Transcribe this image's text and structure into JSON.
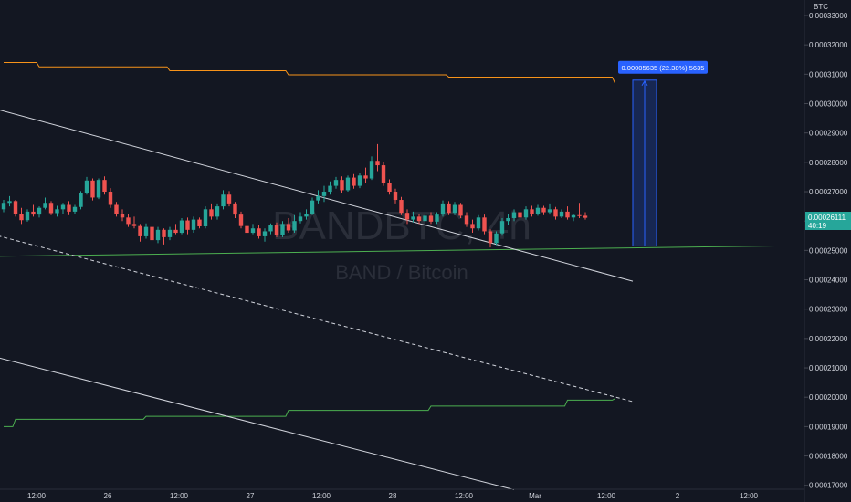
{
  "watermark": {
    "symbol": "BANDBTC, 4h",
    "pair": "BAND / Bitcoin"
  },
  "axis_currency": "BTC",
  "price_tag": {
    "value": "0.00026111",
    "countdown": "40:19"
  },
  "measure_label": "0.00005635 (22.38%) 5635",
  "colors": {
    "background": "#131722",
    "up": "#26a69a",
    "down": "#ef5350",
    "upper_band": "#f7931a",
    "lower_band": "#4caf50",
    "support": "#4caf50",
    "channel": "#d1d4dc",
    "measure": "#2962ff",
    "price_tag_bg": "#26a69a"
  },
  "chart_data": {
    "type": "candlestick",
    "ylim": [
      0.000168,
      0.000335
    ],
    "y_ticks": [
      "0.00033000",
      "0.00032000",
      "0.00031000",
      "0.00030000",
      "0.00029000",
      "0.00028000",
      "0.00027000",
      "0.00026000",
      "0.00025000",
      "0.00024000",
      "0.00023000",
      "0.00022000",
      "0.00021000",
      "0.00020000",
      "0.00019000",
      "0.00018000",
      "0.00017000"
    ],
    "x_ticks": [
      "12:00",
      "26",
      "12:00",
      "27",
      "12:00",
      "28",
      "12:00",
      "Mar",
      "12:00",
      "2",
      "12:00"
    ],
    "candles": [
      [
        0.000264,
        0.0002672,
        0.000263,
        0.0002662
      ],
      [
        0.0002662,
        0.0002685,
        0.000265,
        0.0002668
      ],
      [
        0.0002668,
        0.0002672,
        0.0002615,
        0.0002625
      ],
      [
        0.0002625,
        0.0002645,
        0.000259,
        0.0002603
      ],
      [
        0.0002603,
        0.000264,
        0.0002598,
        0.0002632
      ],
      [
        0.0002632,
        0.0002655,
        0.0002615,
        0.0002622
      ],
      [
        0.0002622,
        0.000265,
        0.0002612,
        0.0002645
      ],
      [
        0.0002645,
        0.000268,
        0.000264,
        0.0002662
      ],
      [
        0.0002662,
        0.0002668,
        0.000262,
        0.0002627
      ],
      [
        0.0002627,
        0.0002652,
        0.0002615,
        0.000264
      ],
      [
        0.000264,
        0.0002662,
        0.0002625,
        0.0002655
      ],
      [
        0.0002655,
        0.0002668,
        0.000262,
        0.0002632
      ],
      [
        0.0002632,
        0.0002655,
        0.0002625,
        0.0002648
      ],
      [
        0.0002648,
        0.0002702,
        0.000264,
        0.0002695
      ],
      [
        0.0002695,
        0.000275,
        0.000269,
        0.0002738
      ],
      [
        0.0002738,
        0.0002745,
        0.000267,
        0.000268
      ],
      [
        0.000268,
        0.0002745,
        0.0002675,
        0.000274
      ],
      [
        0.000274,
        0.0002752,
        0.000269,
        0.00027
      ],
      [
        0.00027,
        0.0002712,
        0.0002645,
        0.0002655
      ],
      [
        0.0002655,
        0.0002665,
        0.0002615,
        0.0002625
      ],
      [
        0.0002625,
        0.000264,
        0.00026,
        0.0002612
      ],
      [
        0.0002612,
        0.0002625,
        0.000258,
        0.000259
      ],
      [
        0.000259,
        0.0002615,
        0.0002575,
        0.0002583
      ],
      [
        0.0002583,
        0.000259,
        0.000253,
        0.0002548
      ],
      [
        0.0002548,
        0.0002592,
        0.000254,
        0.000258
      ],
      [
        0.000258,
        0.000259,
        0.0002525,
        0.0002535
      ],
      [
        0.0002535,
        0.000258,
        0.0002525,
        0.000257
      ],
      [
        0.000257,
        0.0002575,
        0.000252,
        0.0002545
      ],
      [
        0.0002545,
        0.000258,
        0.0002535,
        0.000257
      ],
      [
        0.000257,
        0.000259,
        0.0002555,
        0.000256
      ],
      [
        0.000256,
        0.000261,
        0.0002555,
        0.0002602
      ],
      [
        0.0002602,
        0.0002612,
        0.0002555,
        0.000257
      ],
      [
        0.000257,
        0.0002615,
        0.000256,
        0.0002605
      ],
      [
        0.0002605,
        0.0002612,
        0.0002575,
        0.0002582
      ],
      [
        0.0002582,
        0.000265,
        0.0002575,
        0.000264
      ],
      [
        0.000264,
        0.000266,
        0.0002605,
        0.0002615
      ],
      [
        0.0002615,
        0.000266,
        0.0002605,
        0.000265
      ],
      [
        0.000265,
        0.0002705,
        0.000264,
        0.000269
      ],
      [
        0.000269,
        0.0002702,
        0.000265,
        0.000266
      ],
      [
        0.000266,
        0.0002665,
        0.000261,
        0.0002622
      ],
      [
        0.0002622,
        0.0002632,
        0.0002575,
        0.0002583
      ],
      [
        0.0002583,
        0.0002592,
        0.000255,
        0.000256
      ],
      [
        0.000256,
        0.000259,
        0.0002555,
        0.0002575
      ],
      [
        0.0002575,
        0.0002585,
        0.000254,
        0.0002548
      ],
      [
        0.0002548,
        0.0002575,
        0.000253,
        0.0002565
      ],
      [
        0.0002565,
        0.0002592,
        0.0002555,
        0.0002585
      ],
      [
        0.0002585,
        0.0002595,
        0.0002545,
        0.0002552
      ],
      [
        0.0002552,
        0.00026,
        0.0002545,
        0.000259
      ],
      [
        0.000259,
        0.000261,
        0.000256,
        0.0002568
      ],
      [
        0.0002568,
        0.000262,
        0.000256,
        0.00026
      ],
      [
        0.00026,
        0.000263,
        0.0002592,
        0.0002615
      ],
      [
        0.0002615,
        0.000264,
        0.0002605,
        0.0002625
      ],
      [
        0.0002625,
        0.000268,
        0.000262,
        0.000267
      ],
      [
        0.000267,
        0.0002705,
        0.000266,
        0.0002685
      ],
      [
        0.0002685,
        0.000272,
        0.0002665,
        0.00027
      ],
      [
        0.00027,
        0.0002735,
        0.000269,
        0.000272
      ],
      [
        0.000272,
        0.000275,
        0.000271,
        0.000274
      ],
      [
        0.000274,
        0.0002752,
        0.0002695,
        0.0002705
      ],
      [
        0.0002705,
        0.0002755,
        0.00027,
        0.0002748
      ],
      [
        0.0002748,
        0.000276,
        0.000271,
        0.000272
      ],
      [
        0.000272,
        0.0002765,
        0.0002712,
        0.0002755
      ],
      [
        0.0002755,
        0.0002782,
        0.000273,
        0.0002745
      ],
      [
        0.0002745,
        0.000282,
        0.000274,
        0.0002805
      ],
      [
        0.0002805,
        0.0002862,
        0.000277,
        0.000279
      ],
      [
        0.000279,
        0.00028,
        0.000272,
        0.000273
      ],
      [
        0.000273,
        0.0002742,
        0.000269,
        0.00027
      ],
      [
        0.00027,
        0.000271,
        0.000266,
        0.0002672
      ],
      [
        0.0002672,
        0.0002682,
        0.000262,
        0.0002628
      ],
      [
        0.0002628,
        0.000264,
        0.000259,
        0.0002605
      ],
      [
        0.0002605,
        0.0002632,
        0.0002595,
        0.0002615
      ],
      [
        0.0002615,
        0.0002625,
        0.000259,
        0.00026
      ],
      [
        0.00026,
        0.0002625,
        0.000259,
        0.0002618
      ],
      [
        0.0002618,
        0.000263,
        0.000259,
        0.0002598
      ],
      [
        0.0002598,
        0.000263,
        0.000259,
        0.0002622
      ],
      [
        0.0002622,
        0.000267,
        0.0002615,
        0.000266
      ],
      [
        0.000266,
        0.0002668,
        0.000262,
        0.0002628
      ],
      [
        0.0002628,
        0.0002665,
        0.000262,
        0.0002655
      ],
      [
        0.0002655,
        0.0002662,
        0.000261,
        0.0002618
      ],
      [
        0.0002618,
        0.000263,
        0.000258,
        0.000259
      ],
      [
        0.000259,
        0.0002605,
        0.000256,
        0.0002575
      ],
      [
        0.0002575,
        0.000262,
        0.0002568,
        0.0002612
      ],
      [
        0.0002612,
        0.0002622,
        0.0002555,
        0.0002565
      ],
      [
        0.0002565,
        0.0002572,
        0.000251,
        0.0002525
      ],
      [
        0.0002525,
        0.0002565,
        0.0002518,
        0.0002558
      ],
      [
        0.0002558,
        0.000261,
        0.000255,
        0.00026
      ],
      [
        0.00026,
        0.0002625,
        0.0002585,
        0.000261
      ],
      [
        0.000261,
        0.000264,
        0.00026,
        0.000263
      ],
      [
        0.000263,
        0.0002642,
        0.00026,
        0.0002612
      ],
      [
        0.0002612,
        0.000265,
        0.0002605,
        0.000264
      ],
      [
        0.000264,
        0.0002652,
        0.0002615,
        0.0002625
      ],
      [
        0.0002625,
        0.0002655,
        0.0002618,
        0.0002645
      ],
      [
        0.0002645,
        0.0002652,
        0.000262,
        0.000263
      ],
      [
        0.000263,
        0.000266,
        0.0002622,
        0.000264
      ],
      [
        0.000264,
        0.0002648,
        0.0002605,
        0.0002615
      ],
      [
        0.0002615,
        0.000264,
        0.000261,
        0.0002632
      ],
      [
        0.0002632,
        0.000265,
        0.0002605,
        0.0002612
      ],
      [
        0.0002612,
        0.0002625,
        0.00026,
        0.000262
      ],
      [
        0.000262,
        0.0002662,
        0.000261,
        0.0002618
      ],
      [
        0.0002618,
        0.000263,
        0.0002605,
        0.0002611
      ]
    ],
    "upper_band": [
      [
        0,
        0.000314
      ],
      [
        6,
        0.0003125
      ],
      [
        28,
        0.0003112
      ],
      [
        48,
        0.0003098
      ],
      [
        75,
        0.000309
      ],
      [
        100,
        0.000309
      ],
      [
        103,
        0.000307
      ]
    ],
    "lower_band": [
      [
        0,
        0.00019
      ],
      [
        2,
        0.0001925
      ],
      [
        24,
        0.0001935
      ],
      [
        48,
        0.0001955
      ],
      [
        72,
        0.000197
      ],
      [
        95,
        0.000199
      ],
      [
        103,
        0.0001995
      ]
    ],
    "support_line": [
      [
        -1,
        0.000248
      ],
      [
        130,
        0.0002515
      ]
    ],
    "channel_top": [
      [
        -1,
        0.000298
      ],
      [
        106,
        0.0002395
      ]
    ],
    "channel_mid_dashed": [
      [
        -1,
        0.000255
      ],
      [
        106,
        0.0001985
      ]
    ],
    "channel_bottom": [
      [
        -1,
        0.0002135
      ],
      [
        86,
        0.0001685
      ]
    ],
    "measure": {
      "x_from": 106,
      "x_to": 110,
      "y_from": 0.0002515,
      "y_to": 0.000308
    }
  }
}
